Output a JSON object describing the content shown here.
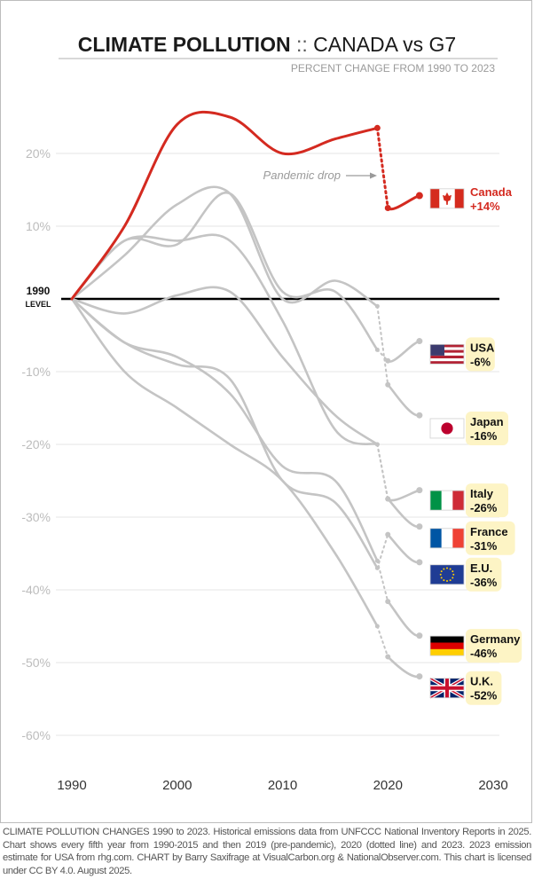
{
  "chart_data": {
    "type": "line",
    "title_bold": "CLIMATE POLLUTION",
    "title_sep": "::",
    "title_rest": "CANADA vs G7",
    "subtitle": "PERCENT CHANGE FROM 1990 TO 2023",
    "baseline_label": [
      "1990",
      "LEVEL"
    ],
    "xlim": [
      1990,
      2030
    ],
    "ylim": [
      -65,
      30
    ],
    "x_ticks": [
      1990,
      2000,
      2010,
      2020,
      2030
    ],
    "x_tick_labels": [
      "1990",
      "2000",
      "2010",
      "2020",
      "2030"
    ],
    "y_ticks": [
      20,
      10,
      -10,
      -20,
      -30,
      -40,
      -50,
      -60
    ],
    "y_tick_labels": [
      "20%",
      "10%",
      "-10%",
      "-20%",
      "-30%",
      "-40%",
      "-50%",
      "-60%"
    ],
    "annotation": "Pandemic drop",
    "highlight": {
      "name": "Canada",
      "value_label": "+14%",
      "color": "#d42a20",
      "x": [
        1990,
        1995,
        2000,
        2005,
        2010,
        2015,
        2019
      ],
      "y": [
        0,
        10,
        24,
        25,
        20,
        22,
        23.5
      ],
      "y2020": 12.5,
      "y2023": 14.2
    },
    "series": [
      {
        "name": "USA",
        "value_label": "-6%",
        "flag": "usa",
        "x": [
          1990,
          1995,
          2000,
          2005,
          2010,
          2015,
          2019
        ],
        "y": [
          0,
          8,
          7.5,
          14.5,
          1,
          1,
          -7
        ],
        "y2020": -8.5,
        "y2023": -5.8
      },
      {
        "name": "Japan",
        "value_label": "-16%",
        "flag": "japan",
        "x": [
          1990,
          1995,
          2000,
          2005,
          2010,
          2015,
          2019
        ],
        "y": [
          0,
          6,
          13,
          14.5,
          0,
          2.5,
          -1
        ],
        "y2020": -11.8,
        "y2023": -16
      },
      {
        "name": "Italy",
        "value_label": "-26%",
        "flag": "italy",
        "x": [
          1990,
          1995,
          2000,
          2005,
          2010,
          2015,
          2019
        ],
        "y": [
          0,
          8,
          8,
          8,
          -3,
          -18,
          -20
        ],
        "y2020": -27.5,
        "y2023": -26.3
      },
      {
        "name": "France",
        "value_label": "-31%",
        "flag": "france",
        "x": [
          1990,
          1995,
          2000,
          2005,
          2010,
          2015,
          2019
        ],
        "y": [
          0,
          -2,
          0.5,
          1,
          -8,
          -16,
          -20
        ],
        "y2020": -27.5,
        "y2023": -31.3
      },
      {
        "name": "E.U.",
        "value_label": "-36%",
        "flag": "eu",
        "x": [
          1990,
          1995,
          2000,
          2005,
          2010,
          2015,
          2019
        ],
        "y": [
          0,
          -6,
          -9,
          -11,
          -25,
          -28,
          -37
        ],
        "y2020": -32.4,
        "y2023": -36.2
      },
      {
        "name": "Germany",
        "value_label": "-46%",
        "flag": "germany",
        "x": [
          1990,
          1995,
          2000,
          2005,
          2010,
          2015,
          2019
        ],
        "y": [
          0,
          -6,
          -8,
          -13,
          -23,
          -25,
          -36
        ],
        "y2020": -41.6,
        "y2023": -46.3
      },
      {
        "name": "U.K.",
        "value_label": "-52%",
        "flag": "uk",
        "x": [
          1990,
          1995,
          2000,
          2005,
          2010,
          2015,
          2019
        ],
        "y": [
          0,
          -10,
          -15,
          -20,
          -25,
          -35,
          -45
        ],
        "y2020": -49.2,
        "y2023": -51.9
      }
    ],
    "label_y": {
      "Canada": 13.8,
      "USA": -7.6,
      "Japan": -17.8,
      "Italy": -27.7,
      "France": -32.9,
      "E.U.": -37.9,
      "Germany": -47.7,
      "U.K.": -53.5
    }
  },
  "colors": {
    "grid": "#e6e6e6",
    "series": "#c4c4c4",
    "highlight": "#d42a20",
    "tick": "#bcbcbc",
    "label_bg": "#fdf4c5",
    "axis": "#000000"
  },
  "footer": "CLIMATE POLLUTION CHANGES 1990 to 2023. Historical emissions data from UNFCCC National Inventory Reports in 2025. Chart shows every fifth year from 1990-2015 and then 2019 (pre-pandemic), 2020 (dotted line) and 2023. 2023 emission estimate for USA from rhg.com. CHART by Barry Saxifrage at VisualCarbon.org & NationalObserver.com. This chart is licensed under CC BY 4.0. August 2025."
}
